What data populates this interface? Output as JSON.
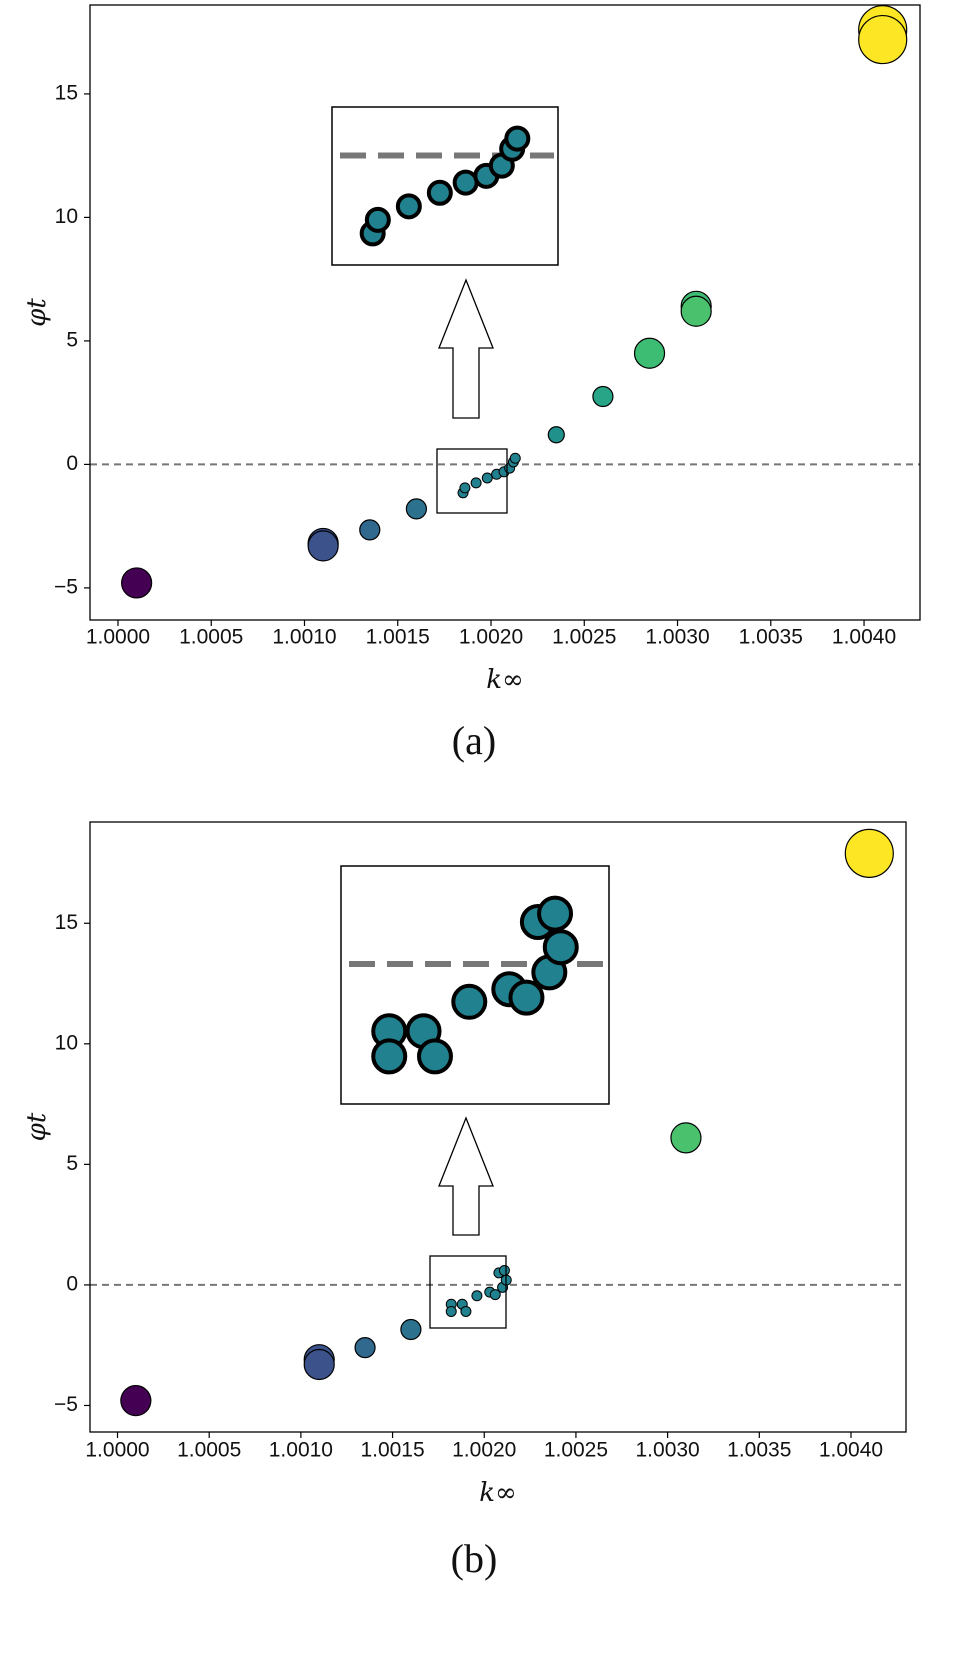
{
  "chart_data": [
    {
      "type": "scatter",
      "panel_label": "(a)",
      "xlabel": "k∞",
      "ylabel": "φt",
      "xlim": [
        0.99985,
        1.0043
      ],
      "ylim": [
        -6.3,
        18.6
      ],
      "xticks": [
        "1.0000",
        "1.0005",
        "1.0010",
        "1.0015",
        "1.0020",
        "1.0025",
        "1.0030",
        "1.0035",
        "1.0040"
      ],
      "yticks": [
        "−5",
        "0",
        "5",
        "10",
        "15"
      ],
      "reference_line_y": 0,
      "points": [
        {
          "x": 1.0001,
          "y": -4.8,
          "size": "medium",
          "color": "#440154"
        },
        {
          "x": 1.0011,
          "y": -3.2,
          "size": "medium",
          "color": "#3b528b"
        },
        {
          "x": 1.0011,
          "y": -3.3,
          "size": "medium",
          "color": "#3b528b"
        },
        {
          "x": 1.00135,
          "y": -2.65,
          "size": "small",
          "color": "#31688e"
        },
        {
          "x": 1.0016,
          "y": -1.8,
          "size": "small",
          "color": "#2c728e"
        },
        {
          "x": 1.00235,
          "y": 1.2,
          "size": "tiny",
          "color": "#21918c"
        },
        {
          "x": 1.0026,
          "y": 2.75,
          "size": "small",
          "color": "#27a586"
        },
        {
          "x": 1.00285,
          "y": 4.5,
          "size": "medium",
          "color": "#3dbc74"
        },
        {
          "x": 1.0031,
          "y": 6.4,
          "size": "medium",
          "color": "#3fbc73"
        },
        {
          "x": 1.0031,
          "y": 6.2,
          "size": "medium",
          "color": "#4ac16d"
        },
        {
          "x": 1.0041,
          "y": 17.6,
          "size": "large",
          "color": "#fde725"
        },
        {
          "x": 1.0041,
          "y": 17.2,
          "size": "large",
          "color": "#fde725"
        }
      ],
      "cluster_points": [
        {
          "x": 1.00185,
          "y": -1.15
        },
        {
          "x": 1.00186,
          "y": -0.95
        },
        {
          "x": 1.00192,
          "y": -0.75
        },
        {
          "x": 1.00198,
          "y": -0.55
        },
        {
          "x": 1.00203,
          "y": -0.4
        },
        {
          "x": 1.00207,
          "y": -0.3
        },
        {
          "x": 1.0021,
          "y": -0.15
        },
        {
          "x": 1.00212,
          "y": 0.1
        },
        {
          "x": 1.00213,
          "y": 0.25
        }
      ],
      "inset_arrow": "up"
    },
    {
      "type": "scatter",
      "panel_label": "(b)",
      "xlabel": "k∞",
      "ylabel": "φt",
      "xlim": [
        0.99985,
        1.0043
      ],
      "ylim": [
        -6.1,
        19.2
      ],
      "xticks": [
        "1.0000",
        "1.0005",
        "1.0010",
        "1.0015",
        "1.0020",
        "1.0025",
        "1.0030",
        "1.0035",
        "1.0040"
      ],
      "yticks": [
        "−5",
        "0",
        "5",
        "10",
        "15"
      ],
      "reference_line_y": 0,
      "points": [
        {
          "x": 1.0001,
          "y": -4.8,
          "size": "medium",
          "color": "#440154"
        },
        {
          "x": 1.0011,
          "y": -3.1,
          "size": "medium",
          "color": "#3b528b"
        },
        {
          "x": 1.0011,
          "y": -3.3,
          "size": "medium",
          "color": "#3b528b"
        },
        {
          "x": 1.00135,
          "y": -2.6,
          "size": "small",
          "color": "#31688e"
        },
        {
          "x": 1.0016,
          "y": -1.85,
          "size": "small",
          "color": "#2c728e"
        },
        {
          "x": 1.0031,
          "y": 6.1,
          "size": "medium",
          "color": "#4ac16d"
        },
        {
          "x": 1.0041,
          "y": 17.9,
          "size": "large",
          "color": "#fde725"
        }
      ],
      "cluster_points": [
        {
          "x": 1.00182,
          "y": -0.8
        },
        {
          "x": 1.00182,
          "y": -1.1
        },
        {
          "x": 1.00188,
          "y": -0.8
        },
        {
          "x": 1.0019,
          "y": -1.1
        },
        {
          "x": 1.00196,
          "y": -0.45
        },
        {
          "x": 1.00203,
          "y": -0.3
        },
        {
          "x": 1.00206,
          "y": -0.4
        },
        {
          "x": 1.00208,
          "y": 0.5
        },
        {
          "x": 1.00211,
          "y": 0.6
        },
        {
          "x": 1.0021,
          "y": -0.1
        },
        {
          "x": 1.00212,
          "y": 0.2
        }
      ],
      "inset_arrow": "up"
    }
  ],
  "colors": {
    "reference_line": "#777777",
    "cluster_fill": "#21818e",
    "marker_edge": "#000000"
  }
}
